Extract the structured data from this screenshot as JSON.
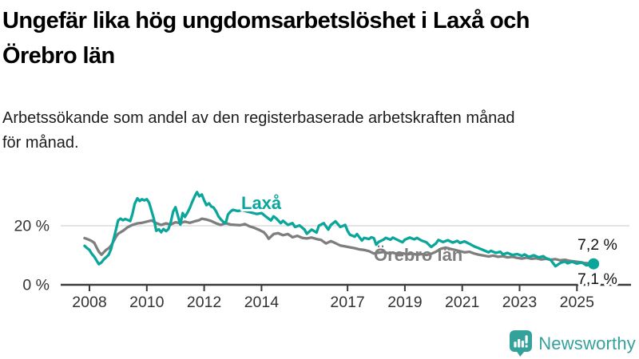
{
  "header": {
    "title_lines": [
      "Ungefär lika hög ungdomsarbetslöshet i Laxå och",
      "Örebro län"
    ],
    "subtitle_lines": [
      "Arbetssökande som andel av den registerbaserade arbetskraften månad",
      "för månad."
    ]
  },
  "chart_data": {
    "type": "line",
    "title": "Ungefär lika hög ungdomsarbetslöshet i Laxå och Örebro län",
    "subtitle": "Arbetssökande som andel av den registerbaserade arbetskraften månad för månad.",
    "unit": "%",
    "x_axis": {
      "ticks": [
        2008,
        2010,
        2012,
        2014,
        2017,
        2019,
        2021,
        2023,
        2025
      ],
      "range": [
        2007.8,
        2025.7
      ],
      "grid": false
    },
    "y_axis": {
      "ticks": [
        {
          "value": 0,
          "label": "0 %"
        },
        {
          "value": 20,
          "label": "20 %"
        }
      ],
      "range": [
        0,
        40
      ],
      "gridline_at": 20
    },
    "series": [
      {
        "name": "Örebro län",
        "color": "#7e7e7e",
        "end_value": 7.2,
        "end_label": "7,2 %",
        "end_dot": false,
        "points": [
          [
            2007.83,
            15.8
          ],
          [
            2007.92,
            15.5
          ],
          [
            2008.0,
            15.2
          ],
          [
            2008.08,
            14.8
          ],
          [
            2008.17,
            14.2
          ],
          [
            2008.25,
            12.6
          ],
          [
            2008.33,
            11.2
          ],
          [
            2008.42,
            10.2
          ],
          [
            2008.5,
            11.0
          ],
          [
            2008.58,
            11.8
          ],
          [
            2008.67,
            12.4
          ],
          [
            2008.75,
            13.2
          ],
          [
            2008.83,
            14.6
          ],
          [
            2008.92,
            16.2
          ],
          [
            2009.0,
            17.3
          ],
          [
            2009.17,
            18.3
          ],
          [
            2009.33,
            19.5
          ],
          [
            2009.5,
            20.3
          ],
          [
            2009.67,
            20.8
          ],
          [
            2009.83,
            21.0
          ],
          [
            2010.0,
            21.4
          ],
          [
            2010.17,
            21.8
          ],
          [
            2010.33,
            20.9
          ],
          [
            2010.5,
            20.3
          ],
          [
            2010.67,
            20.8
          ],
          [
            2010.83,
            20.4
          ],
          [
            2011.0,
            21.2
          ],
          [
            2011.17,
            20.9
          ],
          [
            2011.33,
            21.4
          ],
          [
            2011.5,
            21.0
          ],
          [
            2011.67,
            21.5
          ],
          [
            2011.83,
            21.9
          ],
          [
            2011.92,
            22.4
          ],
          [
            2012.08,
            22.1
          ],
          [
            2012.25,
            21.6
          ],
          [
            2012.42,
            20.8
          ],
          [
            2012.58,
            20.3
          ],
          [
            2012.75,
            20.9
          ],
          [
            2012.92,
            20.4
          ],
          [
            2013.08,
            20.3
          ],
          [
            2013.25,
            20.2
          ],
          [
            2013.42,
            20.6
          ],
          [
            2013.58,
            19.8
          ],
          [
            2013.75,
            19.3
          ],
          [
            2013.92,
            18.6
          ],
          [
            2014.08,
            17.8
          ],
          [
            2014.17,
            16.8
          ],
          [
            2014.25,
            15.6
          ],
          [
            2014.42,
            17.2
          ],
          [
            2014.58,
            17.5
          ],
          [
            2014.75,
            16.8
          ],
          [
            2014.92,
            17.2
          ],
          [
            2015.08,
            16.1
          ],
          [
            2015.25,
            16.6
          ],
          [
            2015.42,
            15.9
          ],
          [
            2015.58,
            15.7
          ],
          [
            2015.75,
            16.0
          ],
          [
            2015.92,
            15.5
          ],
          [
            2016.08,
            15.2
          ],
          [
            2016.25,
            14.0
          ],
          [
            2016.42,
            14.8
          ],
          [
            2016.58,
            14.1
          ],
          [
            2016.75,
            13.3
          ],
          [
            2016.92,
            13.0
          ],
          [
            2017.08,
            12.7
          ],
          [
            2017.25,
            12.4
          ],
          [
            2017.42,
            12.0
          ],
          [
            2017.58,
            11.8
          ],
          [
            2017.75,
            11.4
          ],
          [
            2017.92,
            10.6
          ],
          [
            2018.08,
            10.9
          ],
          [
            2018.25,
            11.1
          ],
          [
            2018.42,
            10.7
          ],
          [
            2018.58,
            10.9
          ],
          [
            2018.75,
            10.4
          ],
          [
            2018.92,
            10.7
          ],
          [
            2019.08,
            10.3
          ],
          [
            2019.25,
            10.6
          ],
          [
            2019.42,
            10.2
          ],
          [
            2019.58,
            10.4
          ],
          [
            2019.75,
            10.1
          ],
          [
            2019.92,
            10.5
          ],
          [
            2020.08,
            11.2
          ],
          [
            2020.25,
            12.2
          ],
          [
            2020.42,
            12.6
          ],
          [
            2020.58,
            12.2
          ],
          [
            2020.75,
            11.8
          ],
          [
            2020.92,
            11.4
          ],
          [
            2021.08,
            11.0
          ],
          [
            2021.25,
            11.2
          ],
          [
            2021.42,
            10.6
          ],
          [
            2021.58,
            10.2
          ],
          [
            2021.75,
            9.9
          ],
          [
            2021.92,
            9.6
          ],
          [
            2022.08,
            9.9
          ],
          [
            2022.25,
            9.5
          ],
          [
            2022.42,
            9.7
          ],
          [
            2022.58,
            9.3
          ],
          [
            2022.75,
            9.5
          ],
          [
            2022.92,
            9.1
          ],
          [
            2023.08,
            8.9
          ],
          [
            2023.25,
            9.2
          ],
          [
            2023.42,
            8.8
          ],
          [
            2023.58,
            9.0
          ],
          [
            2023.75,
            8.6
          ],
          [
            2023.92,
            8.8
          ],
          [
            2024.08,
            8.5
          ],
          [
            2024.25,
            8.7
          ],
          [
            2024.42,
            8.3
          ],
          [
            2024.58,
            8.5
          ],
          [
            2024.75,
            8.1
          ],
          [
            2024.92,
            7.9
          ],
          [
            2025.08,
            7.7
          ],
          [
            2025.25,
            7.4
          ],
          [
            2025.42,
            7.3
          ],
          [
            2025.58,
            7.2
          ]
        ]
      },
      {
        "name": "Laxå",
        "color": "#0ba69b",
        "end_value": 7.1,
        "end_label": "7,1 %",
        "end_dot": true,
        "points": [
          [
            2007.83,
            13.2
          ],
          [
            2007.92,
            12.4
          ],
          [
            2008.0,
            11.8
          ],
          [
            2008.08,
            10.5
          ],
          [
            2008.17,
            9.5
          ],
          [
            2008.25,
            8.2
          ],
          [
            2008.33,
            7.0
          ],
          [
            2008.42,
            7.6
          ],
          [
            2008.5,
            8.6
          ],
          [
            2008.58,
            9.3
          ],
          [
            2008.67,
            10.2
          ],
          [
            2008.75,
            12.0
          ],
          [
            2008.83,
            15.0
          ],
          [
            2008.92,
            18.5
          ],
          [
            2009.0,
            21.8
          ],
          [
            2009.08,
            22.4
          ],
          [
            2009.17,
            21.9
          ],
          [
            2009.25,
            22.3
          ],
          [
            2009.33,
            22.0
          ],
          [
            2009.42,
            21.6
          ],
          [
            2009.5,
            24.0
          ],
          [
            2009.58,
            27.5
          ],
          [
            2009.67,
            29.3
          ],
          [
            2009.75,
            28.4
          ],
          [
            2009.83,
            29.0
          ],
          [
            2009.92,
            28.6
          ],
          [
            2010.0,
            29.0
          ],
          [
            2010.08,
            27.8
          ],
          [
            2010.17,
            24.9
          ],
          [
            2010.25,
            22.2
          ],
          [
            2010.33,
            18.3
          ],
          [
            2010.42,
            18.8
          ],
          [
            2010.5,
            17.8
          ],
          [
            2010.58,
            18.9
          ],
          [
            2010.67,
            18.2
          ],
          [
            2010.75,
            18.8
          ],
          [
            2010.83,
            21.0
          ],
          [
            2010.92,
            24.8
          ],
          [
            2011.0,
            26.3
          ],
          [
            2011.08,
            23.5
          ],
          [
            2011.17,
            20.4
          ],
          [
            2011.25,
            24.3
          ],
          [
            2011.33,
            23.0
          ],
          [
            2011.42,
            24.5
          ],
          [
            2011.5,
            26.0
          ],
          [
            2011.58,
            28.0
          ],
          [
            2011.67,
            30.0
          ],
          [
            2011.75,
            31.4
          ],
          [
            2011.83,
            30.0
          ],
          [
            2011.92,
            30.6
          ],
          [
            2012.0,
            28.6
          ],
          [
            2012.08,
            27.0
          ],
          [
            2012.17,
            27.6
          ],
          [
            2012.25,
            26.5
          ],
          [
            2012.33,
            26.2
          ],
          [
            2012.42,
            24.8
          ],
          [
            2012.5,
            23.2
          ],
          [
            2012.58,
            22.2
          ],
          [
            2012.67,
            21.3
          ],
          [
            2012.75,
            20.8
          ],
          [
            2012.83,
            23.8
          ],
          [
            2012.92,
            24.8
          ],
          [
            2013.0,
            25.4
          ],
          [
            2013.17,
            25.0
          ],
          [
            2013.33,
            25.3
          ],
          [
            2013.5,
            24.8
          ],
          [
            2013.67,
            24.4
          ],
          [
            2013.83,
            24.0
          ],
          [
            2014.0,
            24.3
          ],
          [
            2014.17,
            23.0
          ],
          [
            2014.33,
            21.8
          ],
          [
            2014.42,
            23.2
          ],
          [
            2014.5,
            22.6
          ],
          [
            2014.67,
            20.9
          ],
          [
            2014.75,
            21.7
          ],
          [
            2014.92,
            20.3
          ],
          [
            2015.08,
            20.9
          ],
          [
            2015.17,
            19.6
          ],
          [
            2015.33,
            20.1
          ],
          [
            2015.5,
            18.7
          ],
          [
            2015.58,
            17.3
          ],
          [
            2015.75,
            18.7
          ],
          [
            2015.92,
            17.7
          ],
          [
            2016.0,
            20.0
          ],
          [
            2016.17,
            20.9
          ],
          [
            2016.33,
            18.7
          ],
          [
            2016.42,
            20.3
          ],
          [
            2016.58,
            21.5
          ],
          [
            2016.75,
            19.6
          ],
          [
            2016.92,
            20.3
          ],
          [
            2017.0,
            18.3
          ],
          [
            2017.08,
            17.0
          ],
          [
            2017.25,
            16.3
          ],
          [
            2017.33,
            17.2
          ],
          [
            2017.5,
            15.0
          ],
          [
            2017.58,
            15.9
          ],
          [
            2017.75,
            15.5
          ],
          [
            2017.83,
            16.1
          ],
          [
            2017.92,
            15.8
          ],
          [
            2018.0,
            13.6
          ],
          [
            2018.08,
            14.5
          ],
          [
            2018.25,
            15.3
          ],
          [
            2018.33,
            15.9
          ],
          [
            2018.5,
            15.3
          ],
          [
            2018.58,
            16.0
          ],
          [
            2018.75,
            15.2
          ],
          [
            2018.92,
            14.4
          ],
          [
            2019.0,
            15.3
          ],
          [
            2019.17,
            16.0
          ],
          [
            2019.33,
            15.4
          ],
          [
            2019.42,
            15.9
          ],
          [
            2019.58,
            15.0
          ],
          [
            2019.75,
            14.4
          ],
          [
            2019.92,
            12.8
          ],
          [
            2020.08,
            14.0
          ],
          [
            2020.17,
            15.2
          ],
          [
            2020.33,
            14.5
          ],
          [
            2020.5,
            15.1
          ],
          [
            2020.67,
            14.3
          ],
          [
            2020.83,
            14.9
          ],
          [
            2020.92,
            14.2
          ],
          [
            2021.08,
            14.7
          ],
          [
            2021.25,
            13.9
          ],
          [
            2021.42,
            13.0
          ],
          [
            2021.58,
            12.4
          ],
          [
            2021.75,
            11.7
          ],
          [
            2021.92,
            11.0
          ],
          [
            2022.0,
            11.5
          ],
          [
            2022.17,
            10.8
          ],
          [
            2022.33,
            11.2
          ],
          [
            2022.42,
            10.3
          ],
          [
            2022.58,
            10.8
          ],
          [
            2022.75,
            10.1
          ],
          [
            2022.92,
            10.4
          ],
          [
            2023.08,
            9.8
          ],
          [
            2023.17,
            10.3
          ],
          [
            2023.33,
            9.5
          ],
          [
            2023.5,
            10.0
          ],
          [
            2023.67,
            9.3
          ],
          [
            2023.83,
            9.7
          ],
          [
            2023.92,
            9.0
          ],
          [
            2024.08,
            8.5
          ],
          [
            2024.25,
            6.3
          ],
          [
            2024.42,
            7.4
          ],
          [
            2024.58,
            7.9
          ],
          [
            2024.67,
            7.3
          ],
          [
            2024.83,
            7.8
          ],
          [
            2025.0,
            7.2
          ],
          [
            2025.17,
            7.6
          ],
          [
            2025.33,
            6.6
          ],
          [
            2025.5,
            6.9
          ],
          [
            2025.58,
            7.1
          ]
        ]
      }
    ],
    "legend_position": "inline-labels"
  },
  "footer": {
    "brand": "Newsworthy",
    "brand_color": "#35a19b",
    "logo_icon": "bar-chart-speech-bubble"
  },
  "colors": {
    "laxa_line": "#0ba69b",
    "orebro_line": "#7e7e7e",
    "gridline": "#dcdcdc",
    "axis": "#3a3a3a",
    "text": "#333333"
  }
}
